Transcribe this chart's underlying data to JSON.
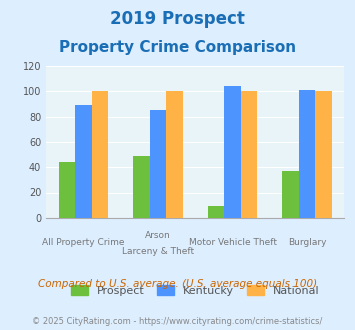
{
  "title_line1": "2019 Prospect",
  "title_line2": "Property Crime Comparison",
  "cat_labels_row1": [
    "All Property Crime",
    "Arson",
    "Motor Vehicle Theft",
    "Burglary"
  ],
  "cat_labels_row2": [
    "",
    "Larceny & Theft",
    "",
    ""
  ],
  "prospect_values": [
    44,
    49,
    9,
    37
  ],
  "kentucky_values": [
    89,
    85,
    104,
    101
  ],
  "national_values": [
    100,
    100,
    100,
    100
  ],
  "colors": {
    "prospect": "#6dbf3e",
    "kentucky": "#4d94ff",
    "national": "#ffb347"
  },
  "ylim": [
    0,
    120
  ],
  "yticks": [
    0,
    20,
    40,
    60,
    80,
    100,
    120
  ],
  "legend_labels": [
    "Prospect",
    "Kentucky",
    "National"
  ],
  "footnote1": "Compared to U.S. average. (U.S. average equals 100)",
  "footnote2": "© 2025 CityRating.com - https://www.cityrating.com/crime-statistics/",
  "title_color": "#1a6eb5",
  "footnote1_color": "#cc6600",
  "footnote2_color": "#888888",
  "background_color": "#ddeeff",
  "plot_bg_color": "#e8f4f8"
}
